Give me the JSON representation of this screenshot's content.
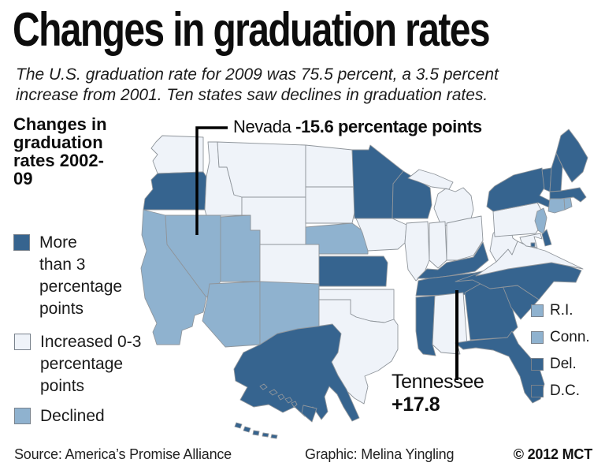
{
  "title": "Changes in graduation rates",
  "subtitle": "The U.S. graduation rate for 2009 was 75.5 percent, a 3.5 percent increase from 2001. Ten states saw declines in graduation rates.",
  "legend": {
    "header": "Changes in graduation rates 2002-09",
    "items": [
      {
        "label": "More than 3 percentage points",
        "category": "more_than_3",
        "color": "#36648f"
      },
      {
        "label": "Increased 0-3 percentage points",
        "category": "increased_0_3",
        "color": "#eff3f9"
      },
      {
        "label": "Declined",
        "category": "declined",
        "color": "#8fb2cf"
      }
    ]
  },
  "annotations": {
    "nevada": {
      "state": "Nevada",
      "value": "-15.6 percentage points"
    },
    "tennessee": {
      "state": "Tennessee",
      "value": "+17.8"
    }
  },
  "small_states_legend": [
    {
      "label": "R.I.",
      "category": "declined"
    },
    {
      "label": "Conn.",
      "category": "declined"
    },
    {
      "label": "Del.",
      "category": "more_than_3"
    },
    {
      "label": "D.C.",
      "category": "more_than_3"
    }
  ],
  "footer": {
    "source": "Source: America’s Promise Alliance",
    "credit": "Graphic: Melina Yingling",
    "copyright": "© 2012 MCT"
  },
  "chart_data": {
    "type": "choropleth",
    "title": "Changes in graduation rates 2002-09",
    "unit": "percentage points",
    "us_rate_2009_percent": 75.5,
    "us_increase_from_2001_percent": 3.5,
    "states_with_declines": 10,
    "category_labels": {
      "more_than_3": "More than 3 percentage points",
      "increased_0_3": "Increased 0-3 percentage points",
      "declined": "Declined"
    },
    "labeled_values": {
      "Nevada": -15.6,
      "Tennessee": 17.8
    },
    "states": [
      {
        "abbr": "WA",
        "name": "Washington",
        "category": "increased_0_3"
      },
      {
        "abbr": "OR",
        "name": "Oregon",
        "category": "more_than_3"
      },
      {
        "abbr": "CA",
        "name": "California",
        "category": "declined"
      },
      {
        "abbr": "NV",
        "name": "Nevada",
        "category": "declined",
        "value": -15.6
      },
      {
        "abbr": "ID",
        "name": "Idaho",
        "category": "increased_0_3"
      },
      {
        "abbr": "MT",
        "name": "Montana",
        "category": "increased_0_3"
      },
      {
        "abbr": "WY",
        "name": "Wyoming",
        "category": "increased_0_3"
      },
      {
        "abbr": "UT",
        "name": "Utah",
        "category": "declined"
      },
      {
        "abbr": "CO",
        "name": "Colorado",
        "category": "increased_0_3"
      },
      {
        "abbr": "AZ",
        "name": "Arizona",
        "category": "declined"
      },
      {
        "abbr": "NM",
        "name": "New Mexico",
        "category": "declined"
      },
      {
        "abbr": "ND",
        "name": "North Dakota",
        "category": "increased_0_3"
      },
      {
        "abbr": "SD",
        "name": "South Dakota",
        "category": "increased_0_3"
      },
      {
        "abbr": "NE",
        "name": "Nebraska",
        "category": "declined"
      },
      {
        "abbr": "KS",
        "name": "Kansas",
        "category": "more_than_3"
      },
      {
        "abbr": "OK",
        "name": "Oklahoma",
        "category": "increased_0_3"
      },
      {
        "abbr": "TX",
        "name": "Texas",
        "category": "increased_0_3"
      },
      {
        "abbr": "MN",
        "name": "Minnesota",
        "category": "more_than_3"
      },
      {
        "abbr": "IA",
        "name": "Iowa",
        "category": "increased_0_3"
      },
      {
        "abbr": "MO",
        "name": "Missouri",
        "category": "more_than_3"
      },
      {
        "abbr": "AR",
        "name": "Arkansas",
        "category": "declined"
      },
      {
        "abbr": "LA",
        "name": "Louisiana",
        "category": "increased_0_3"
      },
      {
        "abbr": "WI",
        "name": "Wisconsin",
        "category": "more_than_3"
      },
      {
        "abbr": "IL",
        "name": "Illinois",
        "category": "increased_0_3"
      },
      {
        "abbr": "MI",
        "name": "Michigan",
        "category": "increased_0_3"
      },
      {
        "abbr": "IN",
        "name": "Indiana",
        "category": "increased_0_3"
      },
      {
        "abbr": "OH",
        "name": "Ohio",
        "category": "increased_0_3"
      },
      {
        "abbr": "KY",
        "name": "Kentucky",
        "category": "more_than_3"
      },
      {
        "abbr": "TN",
        "name": "Tennessee",
        "category": "more_than_3",
        "value": 17.8
      },
      {
        "abbr": "MS",
        "name": "Mississippi",
        "category": "more_than_3"
      },
      {
        "abbr": "AL",
        "name": "Alabama",
        "category": "increased_0_3"
      },
      {
        "abbr": "GA",
        "name": "Georgia",
        "category": "more_than_3"
      },
      {
        "abbr": "FL",
        "name": "Florida",
        "category": "more_than_3"
      },
      {
        "abbr": "SC",
        "name": "South Carolina",
        "category": "more_than_3"
      },
      {
        "abbr": "NC",
        "name": "North Carolina",
        "category": "more_than_3"
      },
      {
        "abbr": "VA",
        "name": "Virginia",
        "category": "increased_0_3"
      },
      {
        "abbr": "WV",
        "name": "West Virginia",
        "category": "increased_0_3"
      },
      {
        "abbr": "PA",
        "name": "Pennsylvania",
        "category": "increased_0_3"
      },
      {
        "abbr": "NY",
        "name": "New York",
        "category": "more_than_3"
      },
      {
        "abbr": "NJ",
        "name": "New Jersey",
        "category": "declined"
      },
      {
        "abbr": "DE",
        "name": "Delaware",
        "category": "more_than_3"
      },
      {
        "abbr": "MD",
        "name": "Maryland",
        "category": "increased_0_3"
      },
      {
        "abbr": "DC",
        "name": "District of Columbia",
        "category": "more_than_3"
      },
      {
        "abbr": "CT",
        "name": "Connecticut",
        "category": "declined"
      },
      {
        "abbr": "RI",
        "name": "Rhode Island",
        "category": "declined"
      },
      {
        "abbr": "MA",
        "name": "Massachusetts",
        "category": "more_than_3"
      },
      {
        "abbr": "VT",
        "name": "Vermont",
        "category": "more_than_3"
      },
      {
        "abbr": "NH",
        "name": "New Hampshire",
        "category": "more_than_3"
      },
      {
        "abbr": "ME",
        "name": "Maine",
        "category": "more_than_3"
      },
      {
        "abbr": "AK",
        "name": "Alaska",
        "category": "more_than_3"
      },
      {
        "abbr": "HI",
        "name": "Hawaii",
        "category": "more_than_3"
      }
    ]
  }
}
